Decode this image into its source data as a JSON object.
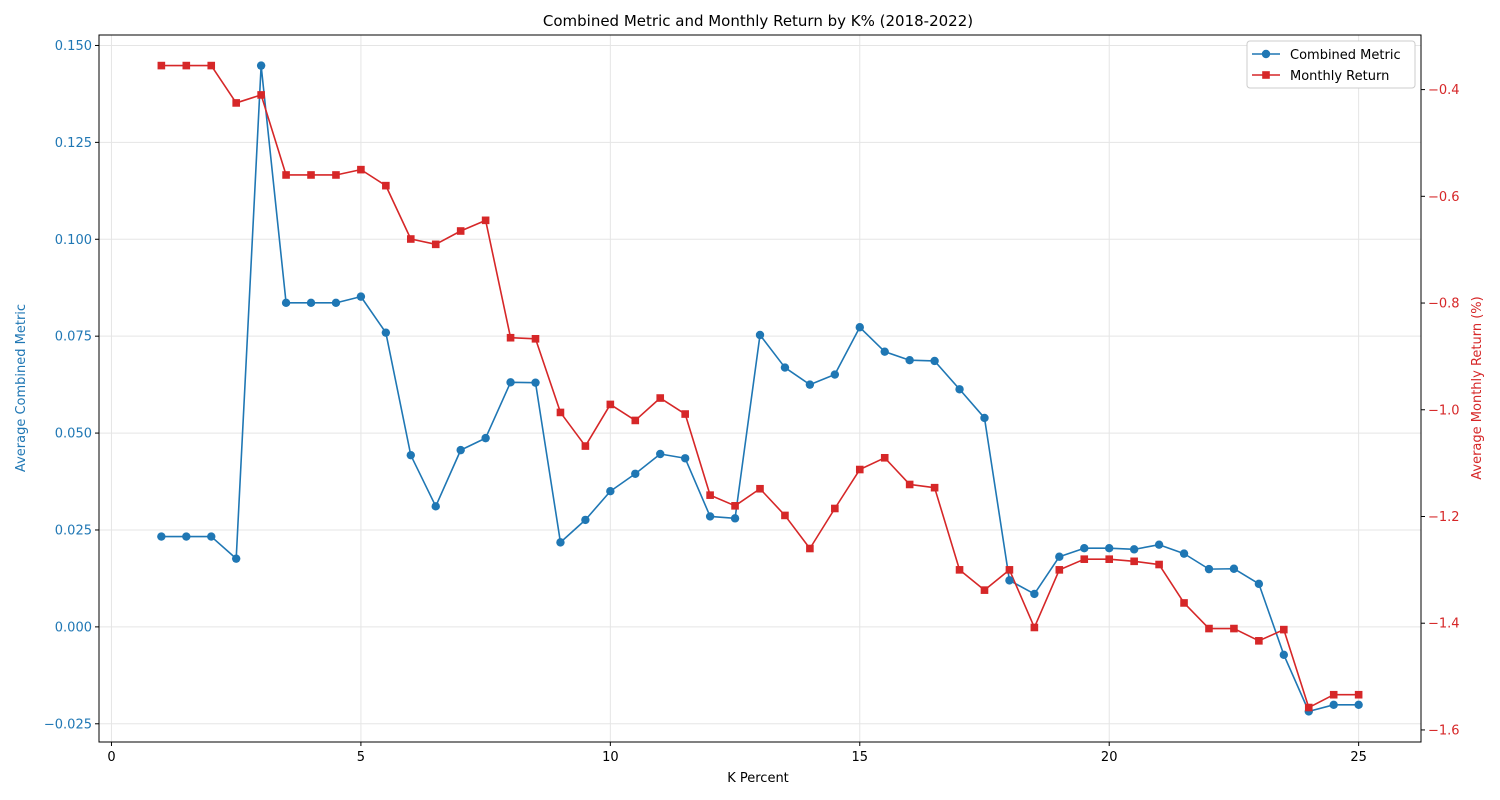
{
  "chart_data": {
    "type": "line",
    "title": "Combined Metric and Monthly Return by K% (2018-2022)",
    "xlabel": "K Percent",
    "ylabel": "Average Combined Metric",
    "y2label": "Average Monthly Return (%)",
    "xlim": [
      -0.25,
      26.25
    ],
    "ylim": [
      -0.0297,
      0.1527
    ],
    "y2lim": [
      -1.6226,
      -0.2977
    ],
    "x_ticks": [
      0,
      5,
      10,
      15,
      20,
      25
    ],
    "y_ticks": [
      -0.025,
      0.0,
      0.025,
      0.05,
      0.075,
      0.1,
      0.125,
      0.15
    ],
    "y_tick_labels": [
      "−0.025",
      "0.000",
      "0.025",
      "0.050",
      "0.075",
      "0.100",
      "0.125",
      "0.150"
    ],
    "y2_ticks": [
      -1.6,
      -1.4,
      -1.2,
      -1.0,
      -0.8,
      -0.6,
      -0.4
    ],
    "y2_tick_labels": [
      "−1.6",
      "−1.4",
      "−1.2",
      "−1.0",
      "−0.8",
      "−0.6",
      "−0.4"
    ],
    "grid": true,
    "legend_position": "top-right",
    "x": [
      1,
      1.5,
      2,
      2.5,
      3,
      3.5,
      4,
      4.5,
      5,
      5.5,
      6,
      6.5,
      7,
      7.5,
      8,
      8.5,
      9,
      9.5,
      10,
      10.5,
      11,
      11.5,
      12,
      12.5,
      13,
      13.5,
      14,
      14.5,
      15,
      15.5,
      16,
      16.5,
      17,
      17.5,
      18,
      18.5,
      19,
      19.5,
      20,
      20.5,
      21,
      21.5,
      22,
      22.5,
      23,
      23.5,
      24,
      24.5,
      25
    ],
    "series": [
      {
        "name": "Combined Metric",
        "axis": "left",
        "color": "#1f77b4",
        "marker": "circle",
        "values": [
          0.0233,
          0.0233,
          0.0233,
          0.0176,
          0.1448,
          0.0836,
          0.0836,
          0.0836,
          0.0852,
          0.0759,
          0.0443,
          0.0311,
          0.0456,
          0.0487,
          0.0631,
          0.063,
          0.0218,
          0.0276,
          0.035,
          0.0395,
          0.0446,
          0.0435,
          0.0285,
          0.028,
          0.0753,
          0.0669,
          0.0625,
          0.0651,
          0.0773,
          0.071,
          0.0688,
          0.0686,
          0.0613,
          0.0539,
          0.012,
          0.0085,
          0.0181,
          0.0203,
          0.0203,
          0.02,
          0.0212,
          0.0189,
          0.0149,
          0.015,
          0.0111,
          -0.0072,
          -0.0218,
          -0.0201,
          -0.0201
        ]
      },
      {
        "name": "Monthly Return",
        "axis": "right",
        "color": "#d62728",
        "marker": "square",
        "values": [
          -0.355,
          -0.355,
          -0.355,
          -0.425,
          -0.41,
          -0.56,
          -0.56,
          -0.56,
          -0.55,
          -0.58,
          -0.68,
          -0.69,
          -0.665,
          -0.645,
          -0.865,
          -0.867,
          -1.005,
          -1.068,
          -0.99,
          -1.02,
          -0.978,
          -1.008,
          -1.16,
          -1.18,
          -1.148,
          -1.198,
          -1.26,
          -1.185,
          -1.112,
          -1.09,
          -1.14,
          -1.146,
          -1.3,
          -1.338,
          -1.3,
          -1.408,
          -1.3,
          -1.28,
          -1.28,
          -1.284,
          -1.29,
          -1.362,
          -1.41,
          -1.41,
          -1.433,
          -1.412,
          -1.558,
          -1.534,
          -1.534
        ]
      }
    ]
  },
  "colors": {
    "left_axis": "#1f77b4",
    "right_axis": "#d62728",
    "grid": "#e5e5e5",
    "frame": "#000000"
  }
}
